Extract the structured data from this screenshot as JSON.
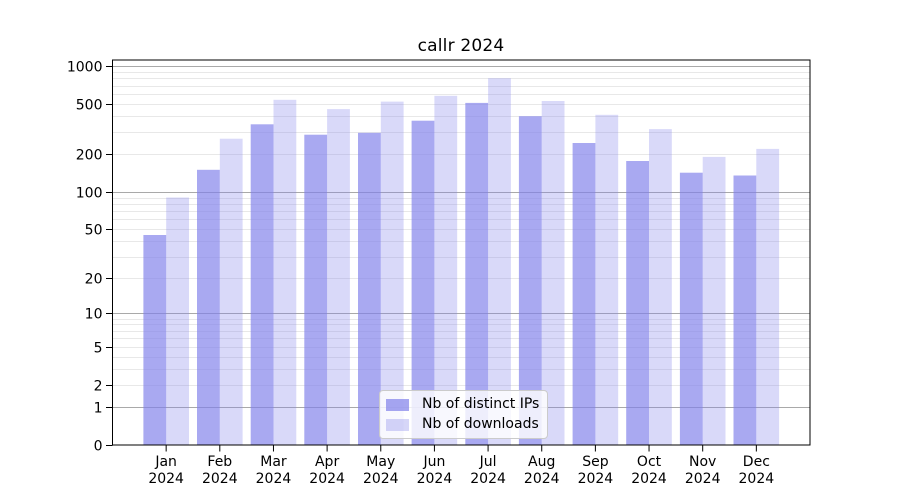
{
  "chart_data": {
    "type": "bar",
    "title": "callr 2024",
    "categories": [
      "Jan 2024",
      "Feb 2024",
      "Mar 2024",
      "Apr 2024",
      "May 2024",
      "Jun 2024",
      "Jul 2024",
      "Aug 2024",
      "Sep 2024",
      "Oct 2024",
      "Nov 2024",
      "Dec 2024"
    ],
    "series": [
      {
        "name": "Nb of distinct IPs",
        "color": "#8080ea",
        "alpha": 0.68,
        "values": [
          45,
          150,
          345,
          285,
          295,
          368,
          510,
          400,
          245,
          176,
          142,
          135
        ]
      },
      {
        "name": "Nb of downloads",
        "color": "#8080ea",
        "alpha": 0.3,
        "values": [
          90,
          265,
          540,
          455,
          522,
          580,
          800,
          528,
          410,
          316,
          190,
          220
        ]
      }
    ],
    "xlabel": "",
    "ylabel": "",
    "y_scale": "log10(value+1)",
    "ylim": [
      0,
      1117
    ],
    "y_ticks": [
      1000,
      500,
      200,
      100,
      50,
      20,
      10,
      5,
      2,
      1,
      0
    ],
    "grid": {
      "on": true,
      "major_at": [
        1,
        10,
        100,
        1000
      ],
      "minor": "log decades 2-9"
    },
    "legend_position": "lower center inside plot"
  },
  "colors": {
    "bar_base": "#8080ea",
    "grid_major": "#a9a9a9",
    "grid_minor": "#e8e8e8",
    "axis_frame": "#000000",
    "background": "#ffffff"
  }
}
